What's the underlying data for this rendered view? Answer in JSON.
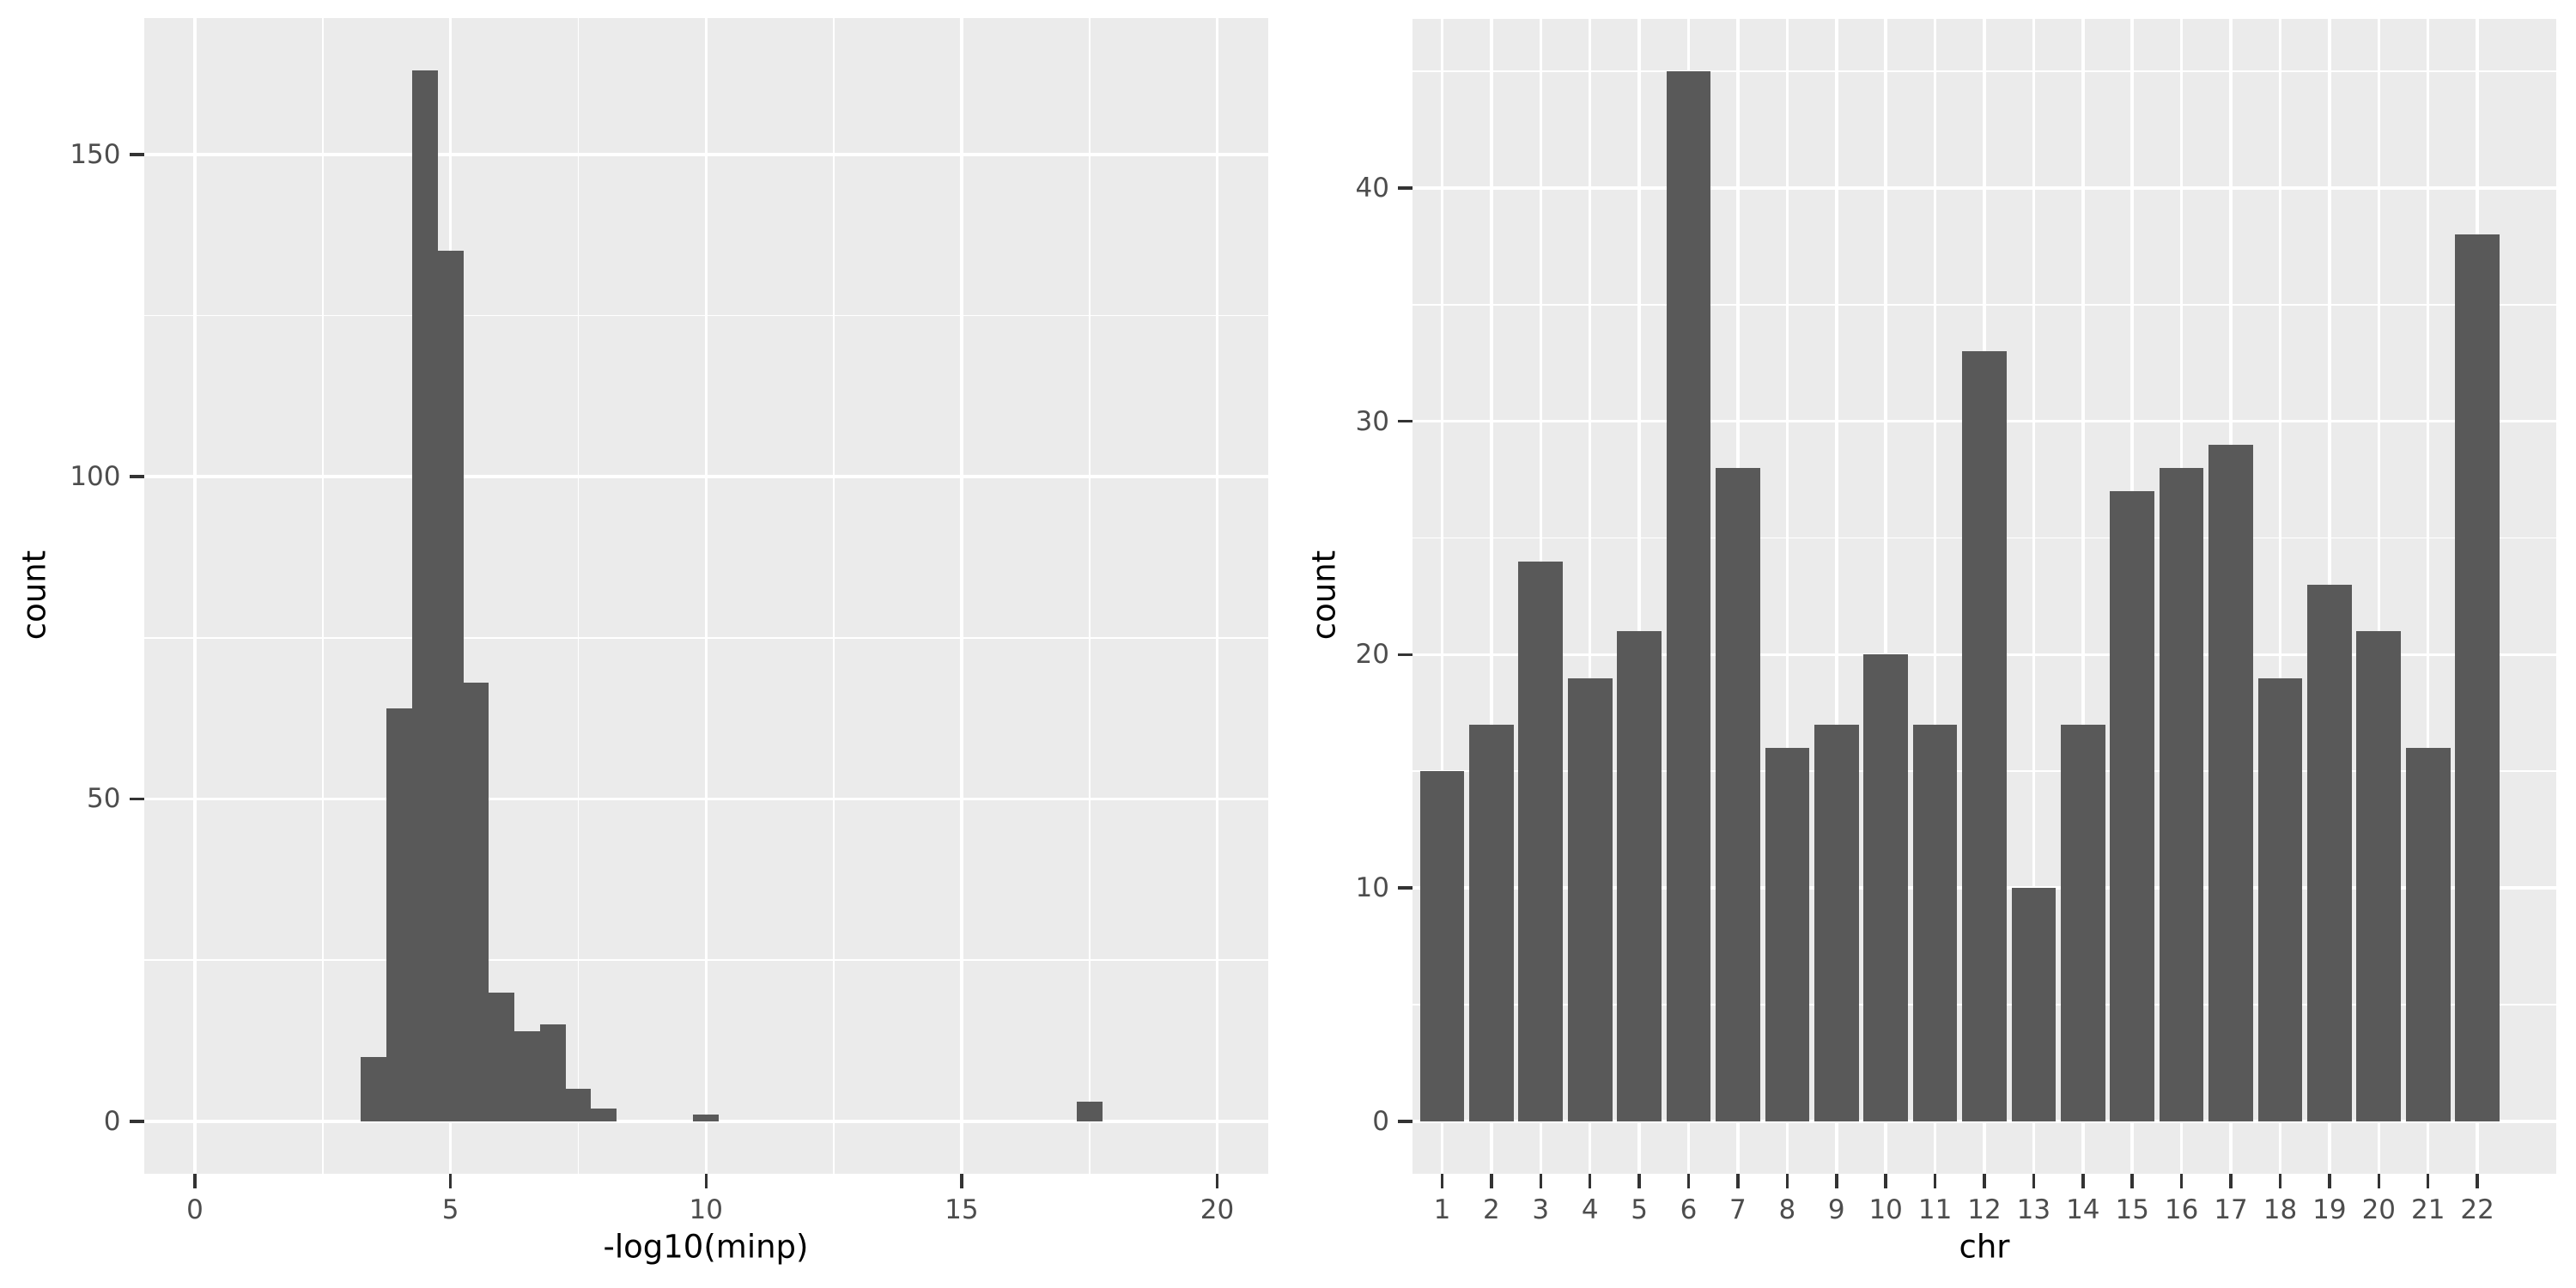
{
  "figure": {
    "background": "#FFFFFF",
    "description_left": "histogram of minimum p-values",
    "description_right": "counts per chromosome"
  },
  "style": {
    "panel_bg": "#EBEBEB",
    "grid_major_color": "#FFFFFF",
    "grid_minor_color": "#FFFFFF",
    "bar_fill": "#595959",
    "tick_label_color": "#4D4D4D",
    "tick_mark_color": "#333333",
    "axis_title_color": "#000000"
  },
  "chart_data": [
    {
      "type": "bar",
      "subtype": "histogram",
      "title": "",
      "xlabel": "-log10(minp)",
      "ylabel": "count",
      "binwidth": 0.5,
      "bin_centers": [
        3.5,
        4.0,
        4.5,
        5.0,
        5.5,
        6.0,
        6.5,
        7.0,
        7.5,
        8.0,
        10.0,
        17.5
      ],
      "values": [
        10,
        64,
        163,
        135,
        68,
        20,
        14,
        15,
        5,
        2,
        1,
        3
      ],
      "x_ticks": [
        0,
        5,
        10,
        15,
        20
      ],
      "y_ticks": [
        0,
        50,
        100,
        150
      ],
      "xlim": [
        -1,
        21
      ],
      "ylim": [
        -8.15,
        171.15
      ],
      "grid": true,
      "legend": false
    },
    {
      "type": "bar",
      "subtype": "category-bar",
      "title": "",
      "xlabel": "chr",
      "ylabel": "count",
      "categories": [
        "1",
        "2",
        "3",
        "4",
        "5",
        "6",
        "7",
        "8",
        "9",
        "10",
        "11",
        "12",
        "13",
        "14",
        "15",
        "16",
        "17",
        "18",
        "19",
        "20",
        "21",
        "22"
      ],
      "values": [
        15,
        17,
        24,
        19,
        21,
        45,
        28,
        16,
        17,
        20,
        17,
        33,
        10,
        17,
        27,
        28,
        29,
        19,
        23,
        21,
        16,
        38
      ],
      "y_ticks": [
        0,
        10,
        20,
        30,
        40
      ],
      "ylim": [
        -2.25,
        47.25
      ],
      "grid": true,
      "legend": false
    }
  ]
}
